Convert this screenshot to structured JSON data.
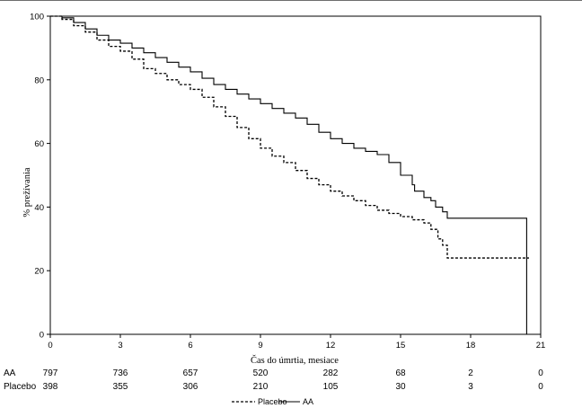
{
  "chart_data": {
    "type": "line",
    "title": "",
    "xlabel": "Čas do úmrtia, mesiace",
    "ylabel": "% prežívania",
    "xlim": [
      0,
      21
    ],
    "ylim": [
      0,
      100
    ],
    "x_ticks": [
      "0",
      "3",
      "6",
      "9",
      "12",
      "15",
      "18",
      "21"
    ],
    "y_ticks": [
      "0",
      "20",
      "40",
      "60",
      "80",
      "100"
    ],
    "grid": false,
    "legend_position": "bottom-center",
    "series": [
      {
        "name": "AA",
        "line_style": "solid",
        "color": "#000000",
        "x": [
          0,
          0.5,
          1,
          1.5,
          2,
          2.5,
          3,
          3.5,
          4,
          4.5,
          5,
          5.5,
          6,
          6.5,
          7,
          7.5,
          8,
          8.5,
          9,
          9.5,
          10,
          10.5,
          11,
          11.5,
          12,
          12.5,
          13,
          13.5,
          14,
          14.5,
          15,
          15.5,
          15.6,
          16,
          16.3,
          16.5,
          16.8,
          17,
          20.4,
          20.4
        ],
        "y": [
          100,
          99.5,
          98,
          96,
          94,
          92.5,
          91.5,
          90,
          88.5,
          87,
          85.5,
          84,
          82.5,
          80.5,
          78.5,
          77,
          75.5,
          74,
          72.5,
          71,
          69.5,
          68,
          66,
          63.5,
          61.5,
          60,
          58.5,
          57.5,
          56.5,
          54,
          50,
          47,
          45,
          43,
          42,
          40,
          38.5,
          36.5,
          36.5,
          0
        ]
      },
      {
        "name": "Placebo",
        "line_style": "dashed",
        "color": "#000000",
        "x": [
          0,
          0.5,
          1,
          1.5,
          2,
          2.5,
          3,
          3.5,
          4,
          4.5,
          5,
          5.5,
          6,
          6.5,
          7,
          7.5,
          8,
          8.5,
          9,
          9.5,
          10,
          10.5,
          11,
          11.5,
          12,
          12.5,
          13,
          13.5,
          14,
          14.5,
          15,
          15.5,
          16,
          16.3,
          16.6,
          16.8,
          17,
          20.5
        ],
        "y": [
          100,
          99,
          97,
          95,
          92.5,
          90.5,
          89,
          86.5,
          83.5,
          82,
          80,
          78.5,
          77,
          74.5,
          71.5,
          68.5,
          65,
          61.5,
          58.5,
          56,
          54,
          51.5,
          49,
          47,
          45,
          43.5,
          42,
          40.5,
          39,
          38,
          37,
          36,
          35,
          33,
          30,
          28,
          24,
          24
        ]
      }
    ],
    "risk_table": {
      "rows": [
        {
          "label": "AA",
          "values": [
            "797",
            "736",
            "657",
            "520",
            "282",
            "68",
            "2",
            "0"
          ]
        },
        {
          "label": "Placebo",
          "values": [
            "398",
            "355",
            "306",
            "210",
            "105",
            "30",
            "3",
            "0"
          ]
        }
      ]
    },
    "legend": [
      {
        "label": "Placebo",
        "line_style": "dashed"
      },
      {
        "label": "AA",
        "line_style": "solid"
      }
    ]
  }
}
